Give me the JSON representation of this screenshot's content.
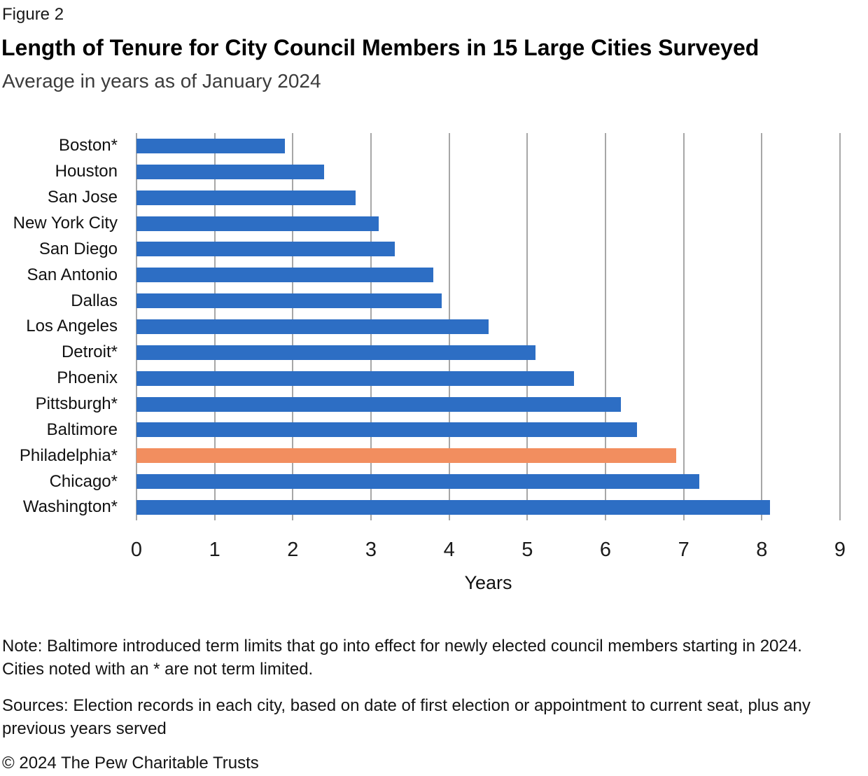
{
  "figure_label": "Figure 2",
  "title": "Length of Tenure for City Council Members in 15 Large Cities Surveyed",
  "subtitle": "Average in years as of January 2024",
  "chart_data": {
    "type": "bar",
    "orientation": "horizontal",
    "title": "Length of Tenure for City Council Members in 15 Large Cities Surveyed",
    "subtitle": "Average in years as of January 2024",
    "categories": [
      "Boston*",
      "Houston",
      "San Jose",
      "New York City",
      "San Diego",
      "San Antonio",
      "Dallas",
      "Los Angeles",
      "Detroit*",
      "Phoenix",
      "Pittsburgh*",
      "Baltimore",
      "Philadelphia*",
      "Chicago*",
      "Washington*"
    ],
    "values": [
      1.9,
      2.4,
      2.8,
      3.1,
      3.3,
      3.8,
      3.9,
      4.5,
      5.1,
      5.6,
      6.2,
      6.4,
      6.9,
      7.2,
      8.1
    ],
    "highlight_category": "Philadelphia*",
    "xlabel": "Years",
    "x_ticks": [
      0,
      1,
      2,
      3,
      4,
      5,
      6,
      7,
      8,
      9
    ],
    "xlim": [
      0,
      9
    ],
    "grid": "vertical-gridlines",
    "legend": "none",
    "colors": {
      "bar": "#2D6EC4",
      "highlight": "#F28E5F",
      "gridline": "#A7A7A7"
    }
  },
  "note_lines": [
    "Note: Baltimore introduced term limits that go into effect for newly elected council members starting in 2024.",
    "Cities noted with an * are not term limited."
  ],
  "sources_lines": [
    "Sources: Election records in each city, based on date of first election or appointment to current seat, plus any",
    "previous years served"
  ],
  "copyright": "© 2024 The Pew Charitable Trusts"
}
